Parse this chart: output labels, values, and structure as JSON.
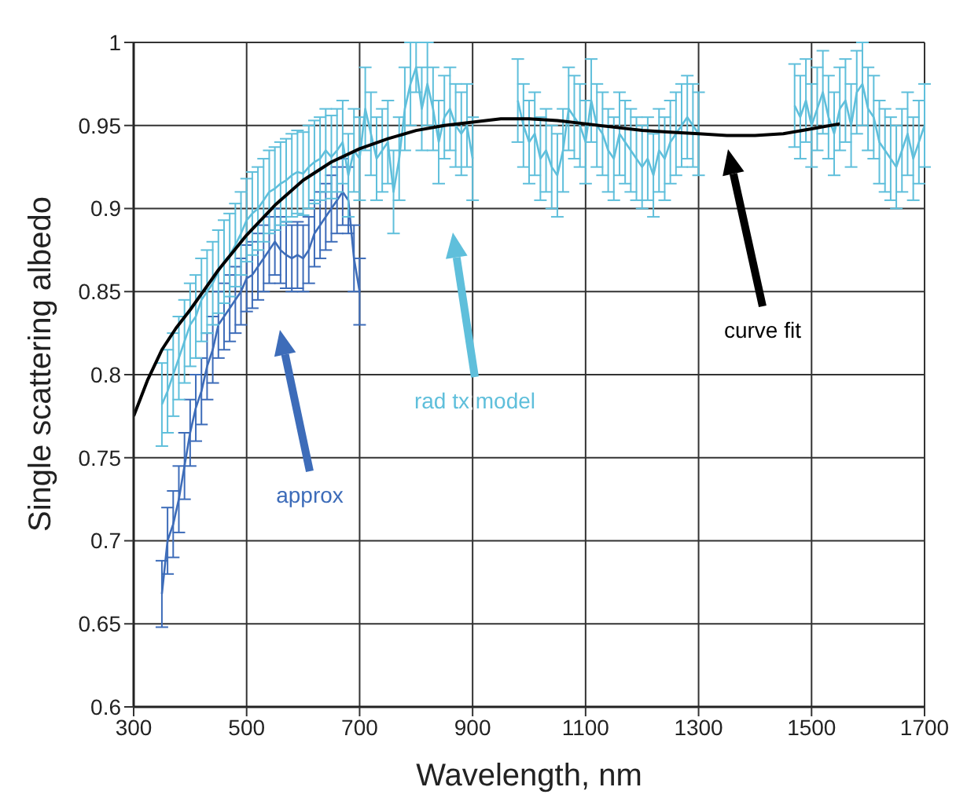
{
  "chart_data": {
    "type": "line",
    "xlabel": "Wavelength, nm",
    "ylabel": "Single scattering albedo",
    "xlim": [
      300,
      1700
    ],
    "xticks": [
      300,
      500,
      700,
      900,
      1100,
      1300,
      1500,
      1700
    ],
    "ylim": [
      0.6,
      1
    ],
    "yticks": [
      0.6,
      0.65,
      0.7,
      0.75,
      0.8,
      0.85,
      0.9,
      0.95,
      1
    ],
    "grid": true,
    "legend": false,
    "series": [
      {
        "color": "#3d6cb9",
        "x": [
          350,
          360,
          370,
          380,
          390,
          400,
          410,
          420,
          430,
          440,
          450,
          460,
          470,
          480,
          490,
          500,
          510,
          520,
          530,
          540,
          550,
          560,
          570,
          580,
          590,
          600,
          610,
          620,
          630,
          640,
          650,
          660,
          670,
          680,
          690,
          700
        ],
        "values": [
          0.668,
          0.7,
          0.71,
          0.725,
          0.745,
          0.765,
          0.78,
          0.79,
          0.805,
          0.815,
          0.83,
          0.835,
          0.84,
          0.845,
          0.85,
          0.858,
          0.86,
          0.865,
          0.87,
          0.875,
          0.88,
          0.875,
          0.872,
          0.87,
          0.872,
          0.87,
          0.875,
          0.885,
          0.89,
          0.895,
          0.9,
          0.905,
          0.91,
          0.905,
          0.87,
          0.85
        ],
        "errors": [
          0.02,
          0.02,
          0.02,
          0.02,
          0.02,
          0.02,
          0.02,
          0.02,
          0.02,
          0.02,
          0.02,
          0.02,
          0.02,
          0.02,
          0.02,
          0.02,
          0.02,
          0.02,
          0.02,
          0.02,
          0.02,
          0.02,
          0.02,
          0.02,
          0.02,
          0.02,
          0.02,
          0.02,
          0.02,
          0.02,
          0.02,
          0.02,
          0.02,
          0.02,
          0.02,
          0.02
        ]
      },
      {
        "color": "#5fbfdb",
        "x": [
          350,
          360,
          370,
          380,
          390,
          400,
          410,
          420,
          430,
          440,
          450,
          460,
          470,
          480,
          490,
          500,
          510,
          520,
          530,
          540,
          550,
          560,
          570,
          580,
          590,
          600,
          610,
          620,
          630,
          640,
          650,
          660,
          670,
          680,
          690,
          700,
          710,
          720,
          730,
          740,
          750,
          760,
          770,
          780,
          790,
          800,
          810,
          820,
          830,
          840,
          850,
          860,
          870,
          880,
          890,
          900,
          910,
          980,
          990,
          1000,
          1010,
          1020,
          1030,
          1040,
          1050,
          1060,
          1070,
          1080,
          1090,
          1100,
          1110,
          1120,
          1130,
          1140,
          1150,
          1160,
          1170,
          1180,
          1190,
          1200,
          1210,
          1220,
          1230,
          1240,
          1250,
          1260,
          1270,
          1280,
          1290,
          1300,
          1310,
          1470,
          1480,
          1490,
          1500,
          1510,
          1520,
          1530,
          1540,
          1550,
          1560,
          1570,
          1580,
          1590,
          1600,
          1610,
          1620,
          1630,
          1640,
          1650,
          1660,
          1670,
          1680,
          1690,
          1700
        ],
        "values": [
          0.782,
          0.79,
          0.8,
          0.81,
          0.82,
          0.83,
          0.835,
          0.845,
          0.85,
          0.855,
          0.862,
          0.868,
          0.872,
          0.878,
          0.885,
          0.893,
          0.897,
          0.9,
          0.905,
          0.91,
          0.912,
          0.915,
          0.917,
          0.92,
          0.922,
          0.921,
          0.925,
          0.928,
          0.93,
          0.935,
          0.931,
          0.935,
          0.94,
          0.92,
          0.935,
          0.93,
          0.96,
          0.945,
          0.93,
          0.935,
          0.94,
          0.91,
          0.93,
          0.96,
          0.975,
          0.985,
          0.96,
          0.975,
          0.96,
          0.94,
          0.955,
          0.96,
          0.95,
          0.945,
          0.95,
          0.93,
          null,
          0.965,
          0.95,
          0.94,
          0.945,
          0.93,
          0.935,
          0.925,
          0.92,
          0.935,
          0.96,
          0.955,
          0.95,
          0.94,
          0.965,
          0.95,
          0.945,
          0.935,
          0.93,
          0.945,
          0.94,
          0.935,
          0.93,
          0.925,
          0.93,
          0.92,
          0.935,
          0.93,
          0.94,
          0.945,
          0.95,
          0.955,
          0.95,
          0.945,
          null,
          0.962,
          0.955,
          0.965,
          0.95,
          0.96,
          0.97,
          0.955,
          0.945,
          0.96,
          0.965,
          0.95,
          0.97,
          0.975,
          0.96,
          0.955,
          0.94,
          0.935,
          0.93,
          0.925,
          0.935,
          0.945,
          0.93,
          0.94,
          0.95
        ],
        "errors": [
          0.025,
          0.025,
          0.025,
          0.025,
          0.025,
          0.025,
          0.025,
          0.025,
          0.025,
          0.025,
          0.025,
          0.025,
          0.025,
          0.025,
          0.025,
          0.025,
          0.025,
          0.025,
          0.025,
          0.025,
          0.025,
          0.025,
          0.025,
          0.025,
          0.025,
          0.025,
          0.025,
          0.025,
          0.025,
          0.025,
          0.025,
          0.025,
          0.025,
          0.025,
          0.025,
          0.025,
          0.025,
          0.025,
          0.025,
          0.025,
          0.025,
          0.025,
          0.025,
          0.025,
          0.025,
          0.015,
          0.025,
          0.025,
          0.025,
          0.025,
          0.025,
          0.025,
          0.025,
          0.025,
          0.025,
          0.025,
          null,
          0.025,
          0.025,
          0.025,
          0.025,
          0.025,
          0.025,
          0.025,
          0.025,
          0.025,
          0.025,
          0.025,
          0.025,
          0.025,
          0.025,
          0.025,
          0.025,
          0.025,
          0.025,
          0.025,
          0.025,
          0.025,
          0.025,
          0.025,
          0.025,
          0.025,
          0.025,
          0.025,
          0.025,
          0.025,
          0.025,
          0.025,
          0.025,
          0.025,
          null,
          0.025,
          0.025,
          0.025,
          0.025,
          0.025,
          0.025,
          0.025,
          0.025,
          0.025,
          0.025,
          0.025,
          0.025,
          0.025,
          0.025,
          0.025,
          0.025,
          0.025,
          0.025,
          0.025,
          0.025,
          0.025,
          0.025,
          0.025,
          0.025
        ]
      },
      {
        "color": "#000000",
        "x": [
          300,
          325,
          350,
          375,
          400,
          450,
          500,
          550,
          600,
          650,
          700,
          750,
          800,
          850,
          900,
          950,
          1000,
          1050,
          1100,
          1150,
          1200,
          1250,
          1300,
          1350,
          1400,
          1450,
          1500,
          1550
        ],
        "values": [
          0.775,
          0.797,
          0.815,
          0.828,
          0.839,
          0.863,
          0.884,
          0.902,
          0.917,
          0.928,
          0.936,
          0.942,
          0.947,
          0.95,
          0.952,
          0.954,
          0.954,
          0.953,
          0.951,
          0.949,
          0.947,
          0.946,
          0.945,
          0.944,
          0.944,
          0.945,
          0.948,
          0.951
        ]
      }
    ],
    "annotations": [
      "approx",
      "rad tx model",
      "curve fit"
    ]
  }
}
